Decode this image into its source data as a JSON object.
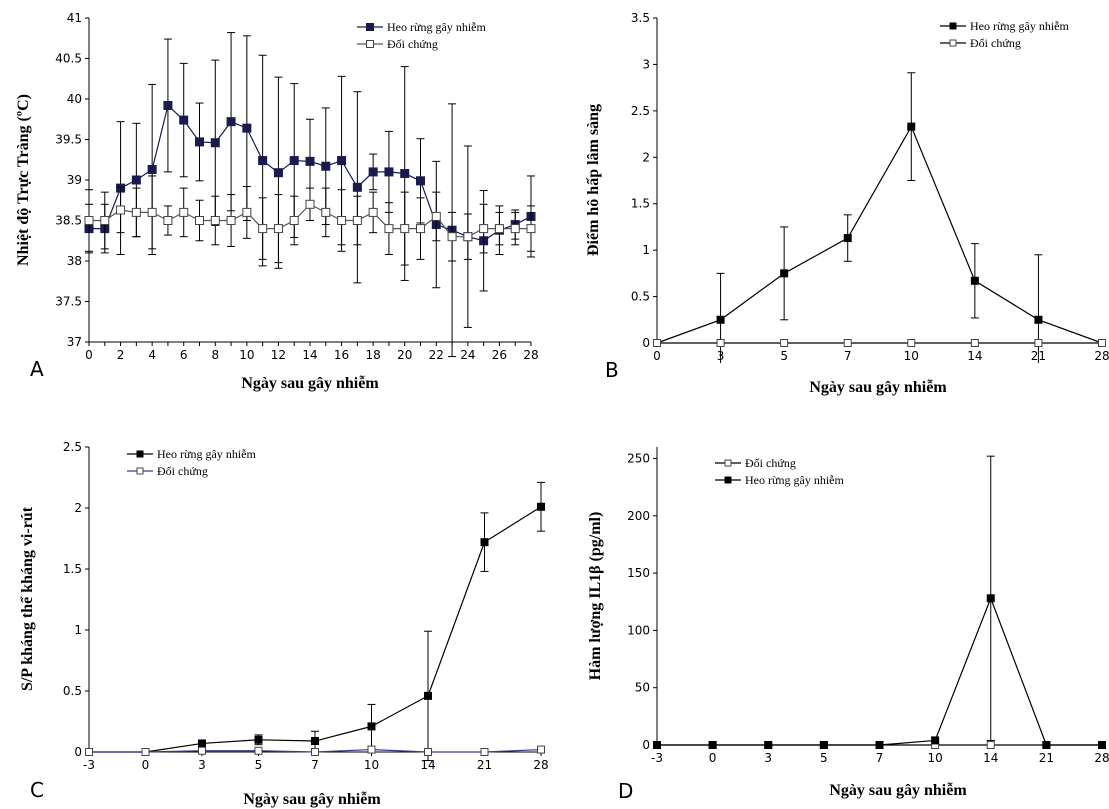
{
  "chart_data": [
    {
      "type": "line",
      "panel_label": "A",
      "xlabel": "Ngày sau gây nhiễm",
      "ylabel": "Nhiệt độ Trực Tràng (ºC)",
      "ylim": [
        37,
        41
      ],
      "yticks": [
        "37",
        "37.5",
        "38",
        "38.5",
        "39",
        "39.5",
        "40",
        "40.5",
        "41"
      ],
      "x": [
        0,
        1,
        2,
        3,
        4,
        5,
        6,
        7,
        8,
        9,
        10,
        11,
        12,
        13,
        14,
        15,
        16,
        17,
        18,
        19,
        20,
        21,
        22,
        23,
        24,
        25,
        26,
        27,
        28
      ],
      "xticks": [
        "0",
        "2",
        "4",
        "6",
        "8",
        "10",
        "12",
        "14",
        "16",
        "18",
        "20",
        "22",
        "24",
        "26",
        "28"
      ],
      "legend_position": "top-right",
      "series": [
        {
          "name": "Heo rừng gây nhiễm",
          "marker": "filled-square",
          "color": "#1a1a4e",
          "values": [
            38.4,
            38.4,
            38.9,
            39.0,
            39.13,
            39.92,
            39.74,
            39.47,
            39.46,
            39.72,
            39.64,
            39.24,
            39.09,
            39.24,
            39.23,
            39.17,
            39.24,
            38.91,
            39.1,
            39.1,
            39.08,
            38.99,
            38.45,
            38.38,
            38.3,
            38.25,
            38.38,
            38.45,
            38.55
          ],
          "errors": [
            0.3,
            0.3,
            0.82,
            0.7,
            1.05,
            0.82,
            0.7,
            0.48,
            1.02,
            1.1,
            1.14,
            1.3,
            1.18,
            0.95,
            0.52,
            0.72,
            1.04,
            1.18,
            0.22,
            0.5,
            1.32,
            0.52,
            0.78,
            1.56,
            1.12,
            0.62,
            0.3,
            0.18,
            0.5
          ]
        },
        {
          "name": "Đối chứng",
          "marker": "open-square",
          "color": "#555555",
          "values": [
            38.5,
            38.5,
            38.63,
            38.6,
            38.6,
            38.5,
            38.6,
            38.5,
            38.5,
            38.5,
            38.6,
            38.4,
            38.4,
            38.5,
            38.7,
            38.6,
            38.5,
            38.5,
            38.6,
            38.4,
            38.4,
            38.4,
            38.55,
            38.3,
            38.3,
            38.4,
            38.4,
            38.4,
            38.4
          ],
          "errors": [
            0.38,
            0.35,
            0.28,
            0.3,
            0.45,
            0.18,
            0.3,
            0.25,
            0.3,
            0.32,
            0.32,
            0.38,
            0.42,
            0.3,
            0.2,
            0.3,
            0.38,
            0.3,
            0.25,
            0.32,
            0.45,
            0.38,
            0.3,
            0.3,
            0.28,
            0.3,
            0.2,
            0.2,
            0.28
          ]
        }
      ]
    },
    {
      "type": "line",
      "panel_label": "B",
      "xlabel": "Ngày sau gây nhiễm",
      "ylabel": "Điểm hô hấp lâm sàng",
      "ylim": [
        0,
        3.5
      ],
      "yticks": [
        "0",
        "0.5",
        "1",
        "1.5",
        "2",
        "2.5",
        "3",
        "3.5"
      ],
      "categories": [
        "0",
        "3",
        "5",
        "7",
        "10",
        "14",
        "21",
        "28"
      ],
      "legend_position": "top-right",
      "series": [
        {
          "name": "Heo rừng gây nhiễm",
          "marker": "filled-square",
          "color": "#000000",
          "values": [
            0,
            0.25,
            0.75,
            1.13,
            2.33,
            0.67,
            0.25,
            0
          ],
          "errors": [
            0,
            0.5,
            0.5,
            0.25,
            0.58,
            0.4,
            0.7,
            0
          ]
        },
        {
          "name": "Đối chứng",
          "marker": "open-square",
          "color": "#000000",
          "values": [
            0,
            0,
            0,
            0,
            0,
            0,
            0,
            0
          ],
          "errors": [
            0,
            0,
            0,
            0,
            0,
            0,
            0,
            0
          ]
        }
      ]
    },
    {
      "type": "line",
      "panel_label": "C",
      "xlabel": "Ngày sau gây nhiễm",
      "ylabel": "S/P kháng thể kháng vi-rút",
      "ylim": [
        0,
        2.5
      ],
      "yticks": [
        "0",
        "0.5",
        "1",
        "1.5",
        "2",
        "2.5"
      ],
      "categories": [
        "-3",
        "0",
        "3",
        "5",
        "7",
        "10",
        "14",
        "21",
        "28"
      ],
      "legend_position": "top-left",
      "series": [
        {
          "name": "Heo rừng gây nhiễm",
          "marker": "filled-square",
          "color": "#000000",
          "values": [
            0,
            0,
            0.07,
            0.1,
            0.09,
            0.21,
            0.46,
            1.72,
            2.01
          ],
          "errors": [
            0,
            0,
            0.02,
            0.04,
            0.08,
            0.18,
            0.53,
            0.24,
            0.2
          ]
        },
        {
          "name": "Đối chứng",
          "marker": "open-square",
          "color": "#3a3a8c",
          "values": [
            0,
            0,
            0.01,
            0.01,
            0,
            0.02,
            0,
            0,
            0.02
          ],
          "errors": [
            0,
            0,
            0,
            0,
            0,
            0,
            0,
            0,
            0
          ]
        }
      ]
    },
    {
      "type": "line",
      "panel_label": "D",
      "xlabel": "Ngày sau gây nhiễm",
      "ylabel": "Hàm lượng IL1β (pg/ml)",
      "ylim": [
        0,
        260
      ],
      "yticks": [
        "0",
        "50",
        "100",
        "150",
        "200",
        "250"
      ],
      "categories": [
        "-3",
        "0",
        "3",
        "5",
        "7",
        "10",
        "14",
        "21",
        "28"
      ],
      "legend_position": "top-left",
      "series": [
        {
          "name": "Đối chứng",
          "marker": "open-square",
          "color": "#000000",
          "values": [
            0,
            0,
            0,
            0,
            0,
            0,
            0,
            0,
            0
          ],
          "errors": [
            0,
            0,
            0,
            0,
            0,
            0,
            0,
            0,
            0
          ]
        },
        {
          "name": "Heo rừng gây nhiễm",
          "marker": "filled-square",
          "color": "#000000",
          "values": [
            0,
            0,
            0,
            0,
            0,
            4,
            128,
            0,
            0
          ],
          "errors": [
            0,
            0,
            0,
            0,
            0,
            0,
            124,
            0,
            0
          ]
        }
      ]
    }
  ]
}
